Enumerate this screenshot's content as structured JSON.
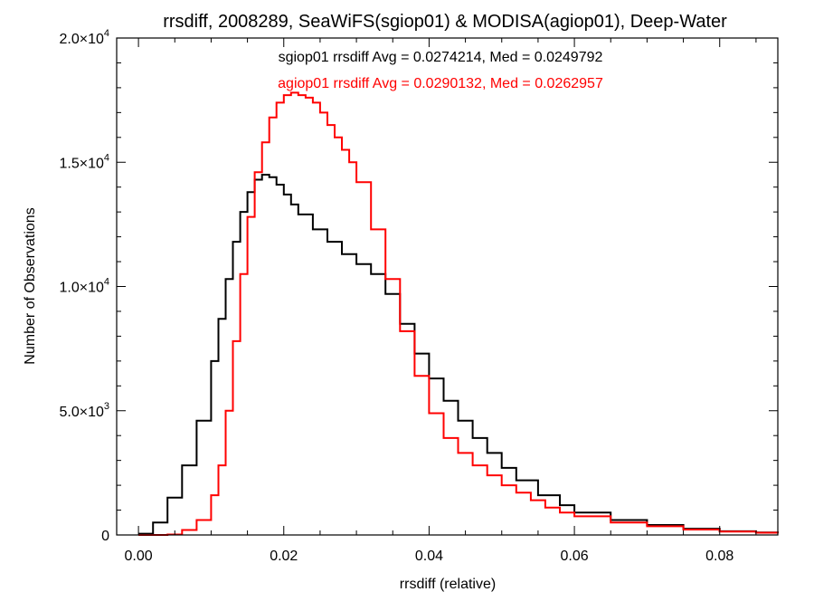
{
  "chart_data": {
    "type": "line",
    "title": "rrsdiff, 2008289, SeaWiFS(sgiop01) & MODISA(agiop01), Deep-Water",
    "xlabel": "rrsdiff (relative)",
    "ylabel": "Number of Observations",
    "xlim": [
      -0.003,
      0.088
    ],
    "ylim": [
      0,
      20000
    ],
    "grid": false,
    "step": true,
    "x_ticks": [
      {
        "value": 0.0,
        "label": "0.00"
      },
      {
        "value": 0.02,
        "label": "0.02"
      },
      {
        "value": 0.04,
        "label": "0.04"
      },
      {
        "value": 0.06,
        "label": "0.06"
      },
      {
        "value": 0.08,
        "label": "0.08"
      }
    ],
    "y_ticks": [
      {
        "value": 0,
        "mant": "0",
        "exp": ""
      },
      {
        "value": 5000,
        "mant": "5.0×10",
        "exp": "3"
      },
      {
        "value": 10000,
        "mant": "1.0×10",
        "exp": "4"
      },
      {
        "value": 15000,
        "mant": "1.5×10",
        "exp": "4"
      },
      {
        "value": 20000,
        "mant": "2.0×10",
        "exp": "4"
      }
    ],
    "annotations": [
      {
        "text": "sgiop01 rrsdiff Avg = 0.0274214, Med = 0.0249792",
        "color": "#000000"
      },
      {
        "text": "agiop01 rrsdiff Avg = 0.0290132, Med = 0.0262957",
        "color": "#ff0000"
      }
    ],
    "series": [
      {
        "color": "#000000",
        "x": [
          0.0,
          0.002,
          0.004,
          0.006,
          0.008,
          0.01,
          0.011,
          0.012,
          0.013,
          0.014,
          0.015,
          0.016,
          0.017,
          0.018,
          0.019,
          0.02,
          0.021,
          0.022,
          0.024,
          0.026,
          0.028,
          0.03,
          0.032,
          0.034,
          0.036,
          0.038,
          0.04,
          0.042,
          0.044,
          0.046,
          0.048,
          0.05,
          0.052,
          0.055,
          0.058,
          0.06,
          0.065,
          0.07,
          0.075,
          0.08,
          0.085,
          0.088
        ],
        "y": [
          50,
          500,
          1500,
          2800,
          4600,
          7000,
          8700,
          10300,
          11800,
          13000,
          13800,
          14300,
          14500,
          14400,
          14100,
          13700,
          13300,
          12900,
          12300,
          11800,
          11300,
          10900,
          10500,
          9700,
          8500,
          7300,
          6300,
          5400,
          4600,
          3900,
          3300,
          2700,
          2200,
          1600,
          1200,
          900,
          600,
          400,
          250,
          150,
          100,
          80
        ]
      },
      {
        "color": "#ff0000",
        "x": [
          0.0,
          0.004,
          0.006,
          0.008,
          0.01,
          0.011,
          0.012,
          0.013,
          0.014,
          0.015,
          0.016,
          0.017,
          0.018,
          0.019,
          0.02,
          0.021,
          0.022,
          0.023,
          0.024,
          0.025,
          0.026,
          0.027,
          0.028,
          0.029,
          0.03,
          0.032,
          0.034,
          0.036,
          0.038,
          0.04,
          0.042,
          0.044,
          0.046,
          0.048,
          0.05,
          0.052,
          0.054,
          0.056,
          0.058,
          0.06,
          0.065,
          0.07,
          0.075,
          0.08,
          0.085,
          0.088
        ],
        "y": [
          0,
          20,
          200,
          600,
          1600,
          2800,
          5000,
          7800,
          10500,
          12800,
          14600,
          15800,
          16800,
          17400,
          17700,
          17800,
          17700,
          17600,
          17400,
          17000,
          16500,
          16000,
          15500,
          15000,
          14200,
          12300,
          10300,
          8200,
          6400,
          4900,
          3900,
          3300,
          2800,
          2400,
          2000,
          1700,
          1400,
          1100,
          900,
          750,
          500,
          350,
          220,
          140,
          90,
          70
        ]
      }
    ]
  }
}
